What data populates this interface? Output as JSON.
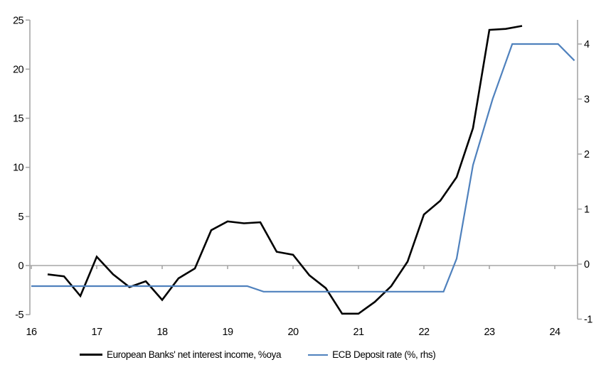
{
  "chart_data": {
    "type": "line",
    "title": "",
    "x_axis": {
      "tick_labels": [
        "16",
        "17",
        "18",
        "19",
        "20",
        "21",
        "22",
        "23",
        "24"
      ],
      "tick_values": [
        16,
        17,
        18,
        19,
        20,
        21,
        22,
        23,
        24
      ],
      "range": [
        15.98,
        24.35
      ]
    },
    "left_axis": {
      "tick_values": [
        25,
        20,
        15,
        10,
        5,
        0,
        -5
      ],
      "range": [
        -5,
        25
      ]
    },
    "right_axis": {
      "tick_values": [
        4,
        3,
        2,
        1,
        0,
        -1
      ],
      "range": [
        -1,
        4.45
      ]
    },
    "grid": "horizontal-zero-line-only",
    "legend_position": "bottom",
    "series": [
      {
        "name": "European Banks' net interest income, %oya",
        "axis": "left",
        "color": "#000000",
        "points": [
          [
            16.25,
            -0.9
          ],
          [
            16.5,
            -1.1
          ],
          [
            16.75,
            -3.1
          ],
          [
            17.0,
            0.9
          ],
          [
            17.25,
            -0.9
          ],
          [
            17.5,
            -2.2
          ],
          [
            17.75,
            -1.6
          ],
          [
            18.0,
            -3.5
          ],
          [
            18.25,
            -1.3
          ],
          [
            18.5,
            -0.3
          ],
          [
            18.75,
            3.6
          ],
          [
            19.0,
            4.5
          ],
          [
            19.25,
            4.3
          ],
          [
            19.5,
            4.4
          ],
          [
            19.75,
            1.4
          ],
          [
            20.0,
            1.1
          ],
          [
            20.25,
            -1.0
          ],
          [
            20.5,
            -2.3
          ],
          [
            20.75,
            -4.9
          ],
          [
            21.0,
            -4.9
          ],
          [
            21.25,
            -3.7
          ],
          [
            21.5,
            -2.1
          ],
          [
            21.75,
            0.4
          ],
          [
            22.0,
            5.2
          ],
          [
            22.25,
            6.6
          ],
          [
            22.5,
            9.0
          ],
          [
            22.75,
            14.0
          ],
          [
            23.0,
            24.0
          ],
          [
            23.25,
            24.1
          ],
          [
            23.5,
            24.4
          ]
        ]
      },
      {
        "name": "ECB Deposit rate (%, rhs)",
        "axis": "right",
        "color": "#4F81BD",
        "points": [
          [
            16.0,
            -0.4
          ],
          [
            19.3,
            -0.4
          ],
          [
            19.55,
            -0.5
          ],
          [
            22.3,
            -0.5
          ],
          [
            22.5,
            0.1
          ],
          [
            22.75,
            1.8
          ],
          [
            23.05,
            3.0
          ],
          [
            23.35,
            4.0
          ],
          [
            24.05,
            4.0
          ],
          [
            24.3,
            3.7
          ]
        ]
      }
    ]
  },
  "legend": {
    "items": [
      {
        "label": "European Banks' net interest income, %oya",
        "color": "#000000"
      },
      {
        "label": "ECB Deposit rate (%, rhs)",
        "color": "#4F81BD"
      }
    ]
  },
  "colors": {
    "axis": "#a6a6a6",
    "zero_line": "#a6a6a6",
    "background": "#ffffff",
    "nii_line": "#000000",
    "ecb_line": "#4F81BD"
  }
}
